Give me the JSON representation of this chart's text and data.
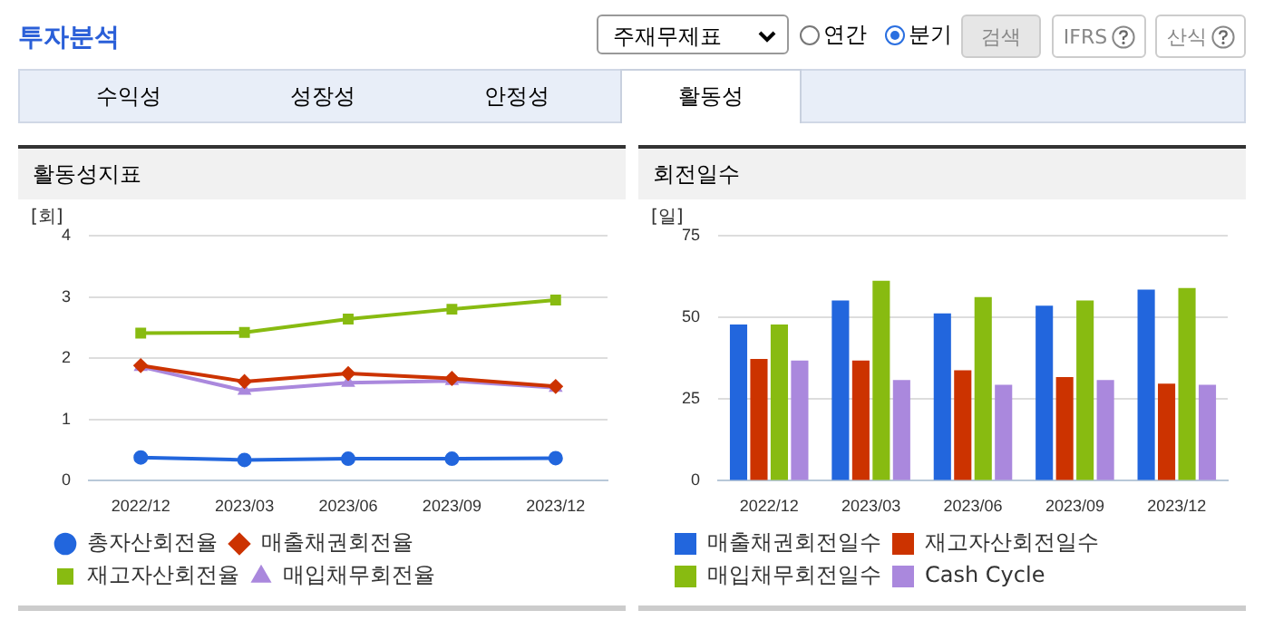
{
  "chart_data": [
    {
      "type": "other",
      "title": "투자분석",
      "annotations": [
        "주재무제표",
        "연간",
        "분기",
        "검색",
        "IFRS",
        "산식",
        "수익성",
        "성장성",
        "안정성",
        "활동성"
      ]
    },
    {
      "type": "line",
      "title": "활동성지표",
      "ylabel": "[회]",
      "categories": [
        "2022/12",
        "2023/03",
        "2023/06",
        "2023/09",
        "2023/12"
      ],
      "ylim": [
        0,
        4
      ],
      "yticks": [
        0,
        1,
        2,
        3,
        4
      ],
      "grid": "y",
      "legend": "bottom",
      "line_style": "solid",
      "series": [
        {
          "name": "총자산회전율",
          "color": "#2266dd",
          "marker": "circle",
          "values": [
            0.38,
            0.34,
            0.36,
            0.36,
            0.37
          ]
        },
        {
          "name": "매출채권회전율",
          "color": "#cc3300",
          "marker": "diamond",
          "values": [
            1.88,
            1.62,
            1.75,
            1.67,
            1.54
          ]
        },
        {
          "name": "재고자산회전율",
          "color": "#88bb11",
          "marker": "square",
          "values": [
            2.41,
            2.42,
            2.64,
            2.8,
            2.95
          ]
        },
        {
          "name": "매입채무회전율",
          "color": "#aa88dd",
          "marker": "triangle",
          "values": [
            1.86,
            1.47,
            1.6,
            1.63,
            1.52
          ]
        }
      ]
    },
    {
      "type": "bar",
      "title": "회전일수",
      "ylabel": "[일]",
      "categories": [
        "2022/12",
        "2023/03",
        "2023/06",
        "2023/09",
        "2023/12"
      ],
      "ylim": [
        0,
        75
      ],
      "yticks": [
        0,
        25,
        50,
        75
      ],
      "grid": "y",
      "legend": "bottom",
      "series": [
        {
          "name": "매출채권회전일수",
          "color": "#2266dd",
          "values": [
            47.8,
            55.2,
            51.2,
            53.6,
            58.5
          ]
        },
        {
          "name": "재고자산회전일수",
          "color": "#cc3300",
          "values": [
            37.3,
            36.8,
            33.8,
            31.7,
            29.7
          ]
        },
        {
          "name": "매입채무회전일수",
          "color": "#88bb11",
          "values": [
            47.8,
            61.2,
            56.2,
            55.2,
            59
          ]
        },
        {
          "name": "Cash Cycle",
          "color": "#aa88dd",
          "values": [
            36.8,
            30.8,
            29.4,
            30.8,
            29.4
          ]
        }
      ]
    }
  ]
}
